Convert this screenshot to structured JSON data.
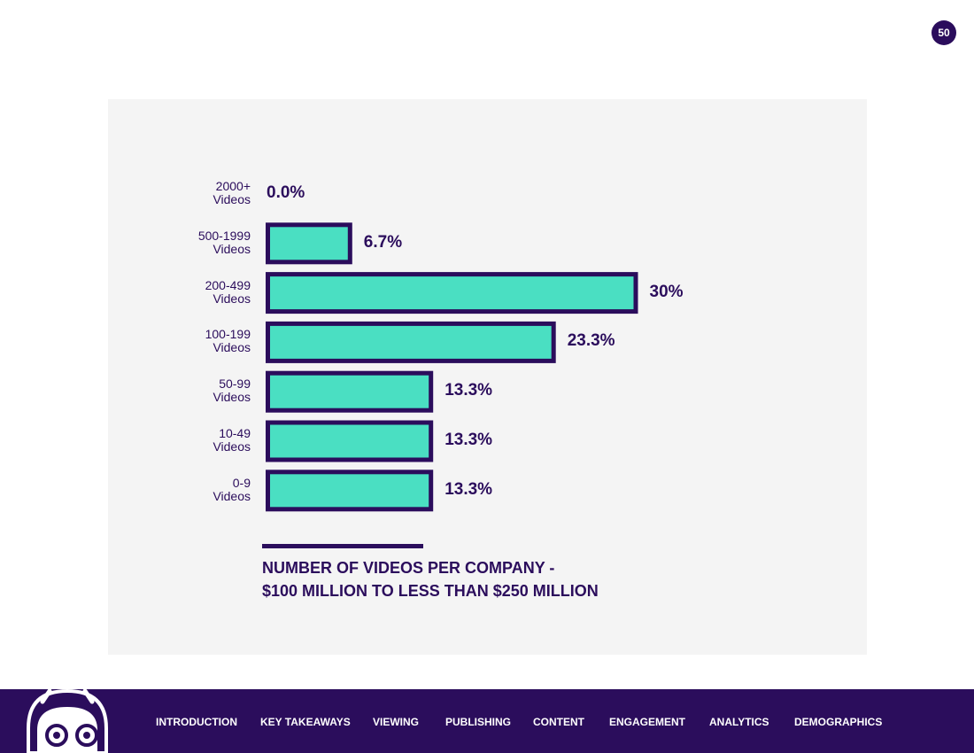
{
  "page_number": "50",
  "colors": {
    "bar_fill": "#4adfc2",
    "bar_outline": "#2b0d5c",
    "text": "#2b0d5c",
    "panel_bg": "#f4f4f4",
    "footer_bg": "#2b0d5c"
  },
  "chart_data": {
    "type": "bar",
    "orientation": "horizontal",
    "title_line1": "NUMBER OF VIDEOS PER COMPANY -",
    "title_line2": "$100 MILLION TO LESS THAN $250 MILLION",
    "categories": [
      {
        "line1": "2000+",
        "line2": "Videos"
      },
      {
        "line1": "500-1999",
        "line2": "Videos"
      },
      {
        "line1": "200-499",
        "line2": "Videos"
      },
      {
        "line1": "100-199",
        "line2": "Videos"
      },
      {
        "line1": "50-99",
        "line2": "Videos"
      },
      {
        "line1": "10-49",
        "line2": "Videos"
      },
      {
        "line1": "0-9",
        "line2": "Videos"
      }
    ],
    "values": [
      0.0,
      6.7,
      30,
      23.3,
      13.3,
      13.3,
      13.3
    ],
    "value_labels": [
      "0.0%",
      "6.7%",
      "30%",
      "23.3%",
      "13.3%",
      "13.3%",
      "13.3%"
    ],
    "unit": "%",
    "grid": false,
    "legend": "none"
  },
  "mascot_icon": "robot-mascot-icon",
  "nav": {
    "items": [
      "INTRODUCTION",
      "KEY TAKEAWAYS",
      "VIEWING",
      "PUBLISHING",
      "CONTENT",
      "ENGAGEMENT",
      "ANALYTICS",
      "DEMOGRAPHICS"
    ]
  }
}
